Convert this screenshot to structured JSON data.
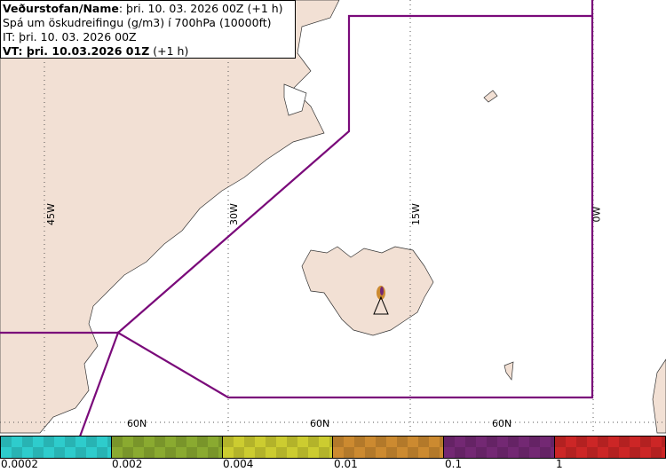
{
  "title": {
    "line1_bold": "Veðurstofan/Name",
    "line1_rest": ": þri. 10. 03. 2026 00Z (+1 h)",
    "line2": "Spá um öskudreifingu (g/m3) í 700hPa (10000ft)",
    "line3": "IT: þri. 10. 03. 2026 00Z",
    "line4_bold": "VT: þri. 10.03.2026 01Z",
    "line4_rest": " (+1 h)"
  },
  "grid_labels": {
    "lon": [
      "45W",
      "30W",
      "15W",
      "0W"
    ],
    "lat": [
      "60N",
      "60N",
      "60N"
    ]
  },
  "legend": {
    "labels": [
      "0.0002",
      "0.002",
      "0.004",
      "0.01",
      "0.1",
      "1"
    ],
    "colors": [
      "#2ecccc",
      "#8aaa30",
      "#cccc30",
      "#cc8a30",
      "#732873",
      "#cc2626"
    ]
  },
  "colors": {
    "land": "#f2e0d4",
    "boundary": "#7a0a7a"
  }
}
